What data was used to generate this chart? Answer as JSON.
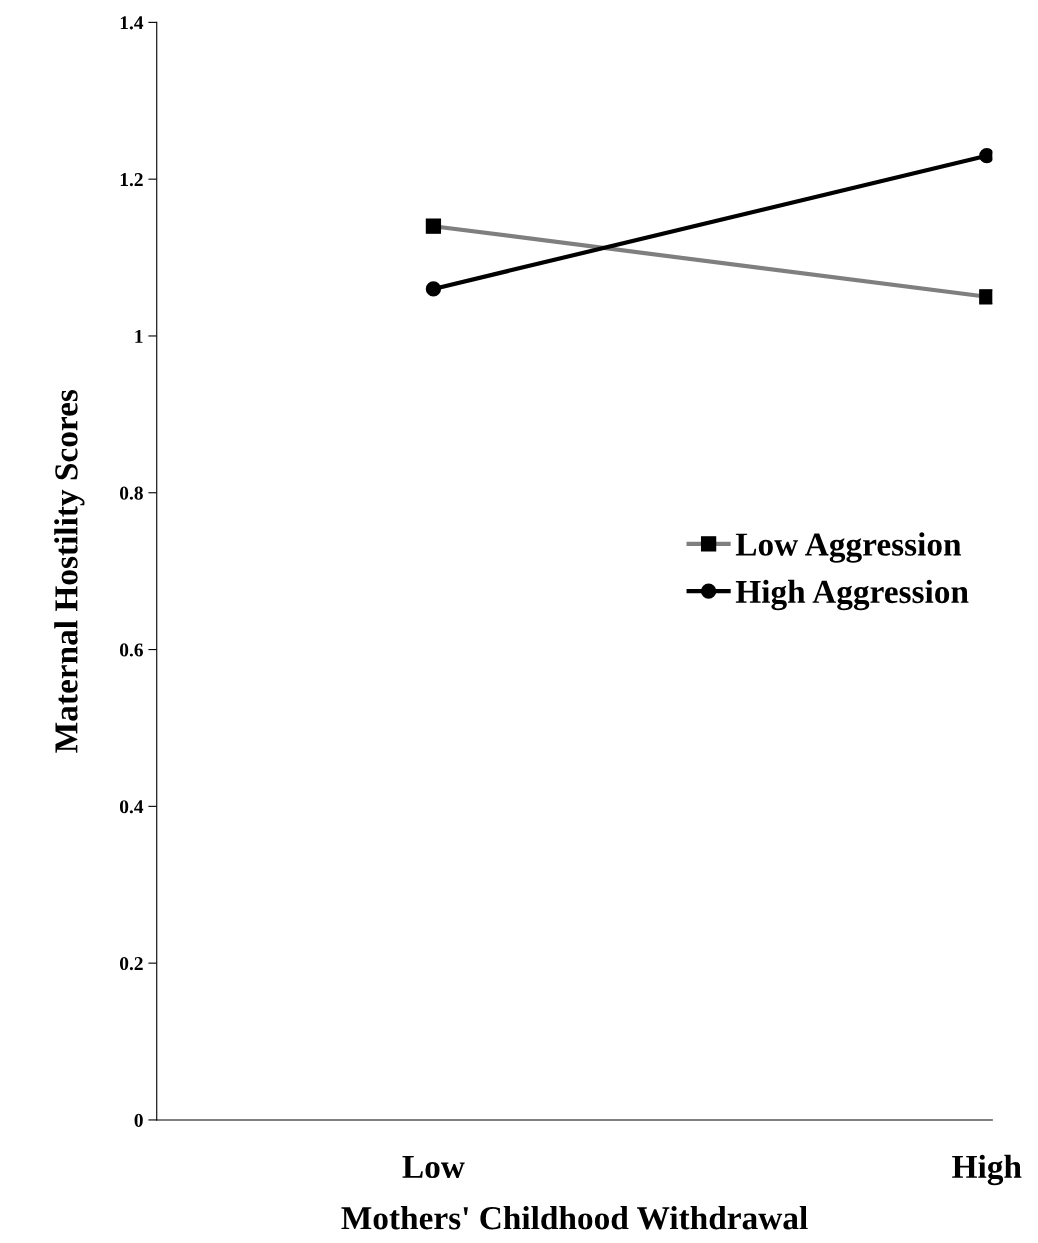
{
  "chart_data": {
    "type": "line",
    "xlabel": "Mothers' Childhood Withdrawal",
    "ylabel": "Maternal Hostility Scores",
    "categories": [
      "Low",
      "High"
    ],
    "series": [
      {
        "name": "Low Aggression",
        "color": "#7f7f7f",
        "marker": "square",
        "values": [
          1.14,
          1.05
        ]
      },
      {
        "name": "High Aggression",
        "color": "#000000",
        "marker": "circle",
        "values": [
          1.06,
          1.23
        ]
      }
    ],
    "ylim": [
      0,
      1.4
    ],
    "yticks": [
      0,
      0.2,
      0.4,
      0.6,
      0.8,
      1,
      1.2,
      1.4
    ],
    "grid": false,
    "legend": "right"
  }
}
